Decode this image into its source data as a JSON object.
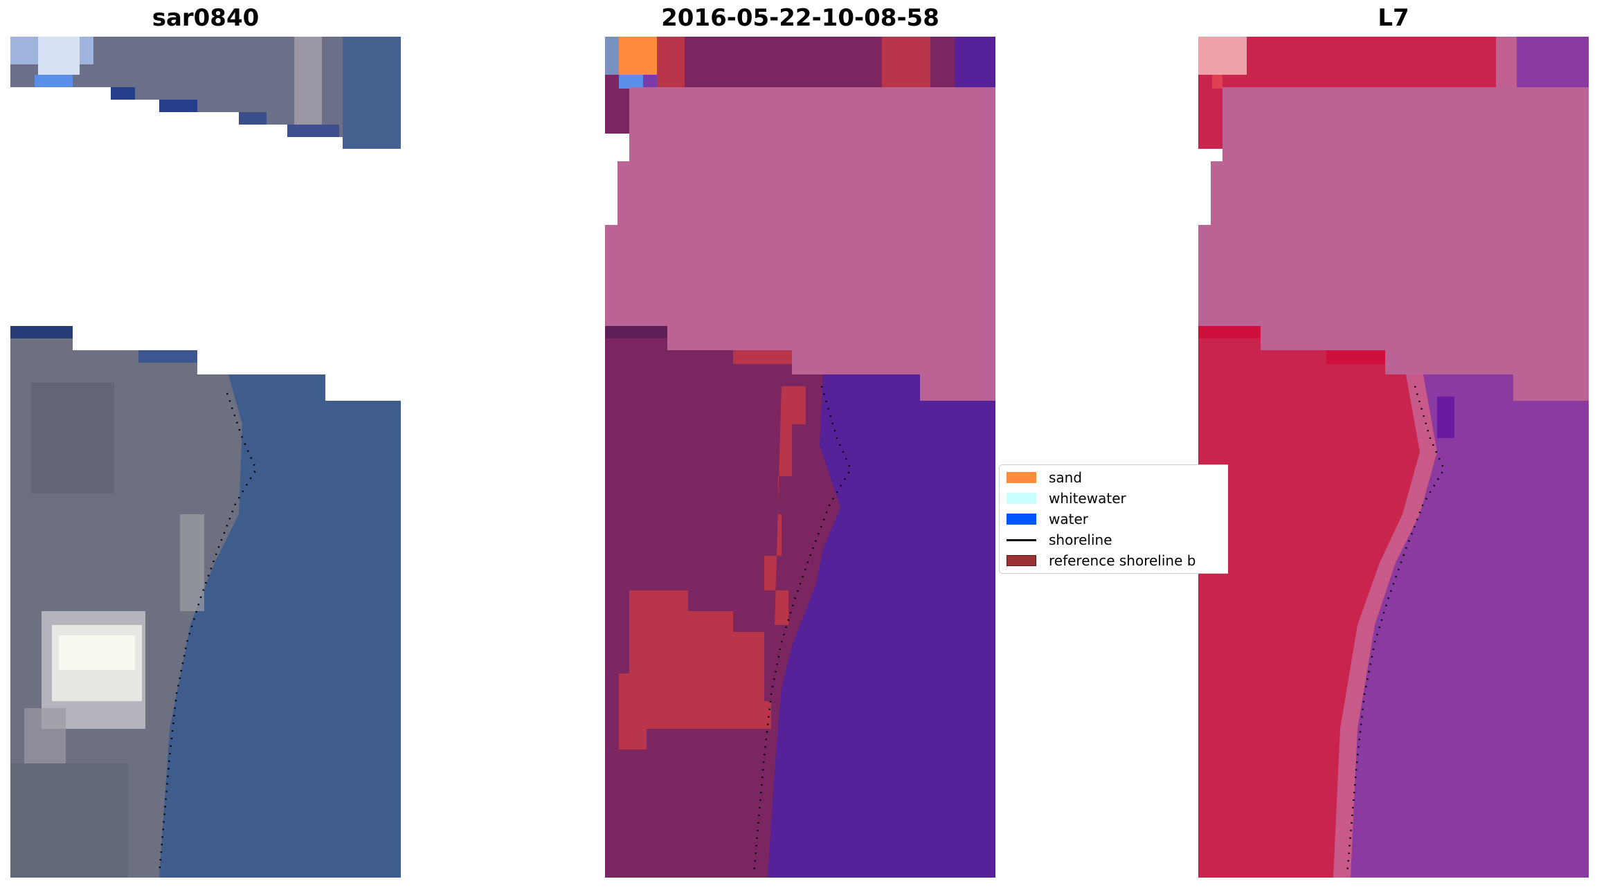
{
  "panels": [
    {
      "title": "sar0840",
      "kind": "rgb"
    },
    {
      "title": "2016-05-22-10-08-58",
      "kind": "classified"
    },
    {
      "title": "L7",
      "kind": "index"
    }
  ],
  "legend": {
    "items": [
      {
        "label": "sand",
        "color": "#ff8c3c",
        "type": "patch"
      },
      {
        "label": "whitewater",
        "color": "#c9ffff",
        "type": "patch"
      },
      {
        "label": "water",
        "color": "#0057ff",
        "type": "patch"
      },
      {
        "label": "shoreline",
        "color": "#000000",
        "type": "line"
      },
      {
        "label": "reference shoreline b",
        "color": "#9b3236",
        "type": "patch"
      }
    ]
  },
  "colors": {
    "rgb_land": "#6e7080",
    "rgb_water": "#3f5e8c",
    "rgb_cloud": "#f2f2ec",
    "cls_land": "#7b2660",
    "cls_buffer": "#b9364a",
    "cls_water": "#56229a",
    "cls_cloudmask": "#bb6395",
    "idx_land": "#c8244e",
    "idx_water": "#8a3aa0",
    "idx_cloudmask": "#bb6395"
  }
}
